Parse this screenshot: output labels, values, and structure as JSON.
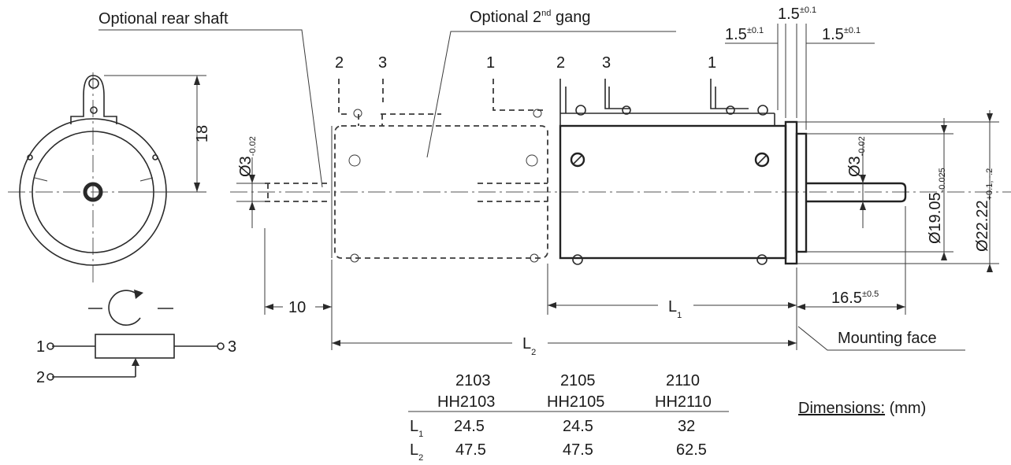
{
  "labels": {
    "optional_rear_shaft": "Optional rear shaft",
    "optional_2nd_gang": "Optional 2",
    "optional_2nd_gang_sup": "nd",
    "optional_2nd_gang_suffix": " gang",
    "mounting_face": "Mounting face",
    "dimensions": "Dimensions:",
    "dimensions_unit": "(mm)"
  },
  "terminals": {
    "gang_labels": [
      "2",
      "3",
      "1"
    ],
    "main_labels": [
      "2",
      "3",
      "1"
    ]
  },
  "dimensions": {
    "height_18": "18",
    "rear_shaft_dia": "Ø3",
    "rear_shaft_tol": "-0.02",
    "front_shaft_dia": "Ø3",
    "front_shaft_tol": "-0.02",
    "body_dia": "Ø19.05",
    "body_tol": "-0.025",
    "flange_dia": "Ø22.22",
    "flange_tol": "+0.1, -.2",
    "d_10": "10",
    "l1": "L",
    "l1_sub": "1",
    "l2": "L",
    "l2_sub": "2",
    "shaft_len": "16.5",
    "shaft_len_tol": "±0.5",
    "gap_top": "1.5",
    "gap_top_tol": "±0.1",
    "gap_left": "1.5",
    "gap_left_tol": "±0.1",
    "gap_right": "1.5",
    "gap_right_tol": "±0.1"
  },
  "schematic": {
    "pin1": "1",
    "pin2": "2",
    "pin3": "3"
  },
  "table": {
    "models": [
      "2103",
      "2105",
      "2110"
    ],
    "hh_models": [
      "HH2103",
      "HH2105",
      "HH2110"
    ],
    "row_l1_label": "L",
    "row_l1_sub": "1",
    "row_l2_label": "L",
    "row_l2_sub": "2",
    "l1_values": [
      "24.5",
      "24.5",
      "32"
    ],
    "l2_values": [
      "47.5",
      "47.5",
      "62.5"
    ]
  }
}
